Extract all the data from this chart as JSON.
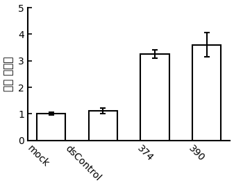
{
  "categories": [
    "mock",
    "dsControl",
    "374",
    "390"
  ],
  "values": [
    1.0,
    1.12,
    3.25,
    3.6
  ],
  "errors": [
    0.05,
    0.1,
    0.15,
    0.45
  ],
  "bar_color": "#ffffff",
  "bar_edgecolor": "#000000",
  "bar_linewidth": 1.5,
  "errorbar_color": "#000000",
  "errorbar_linewidth": 1.5,
  "errorbar_capsize": 3,
  "ylabel": "相对 表达量",
  "ylim": [
    0,
    5
  ],
  "yticks": [
    0,
    1,
    2,
    3,
    4,
    5
  ],
  "xlabel_rotation": -45,
  "xlabel_ha": "right",
  "background_color": "#ffffff",
  "tick_direction": "in",
  "bar_width": 0.55,
  "ylabel_fontsize": 11,
  "xlabel_fontsize": 10,
  "spine_linewidth": 1.5
}
